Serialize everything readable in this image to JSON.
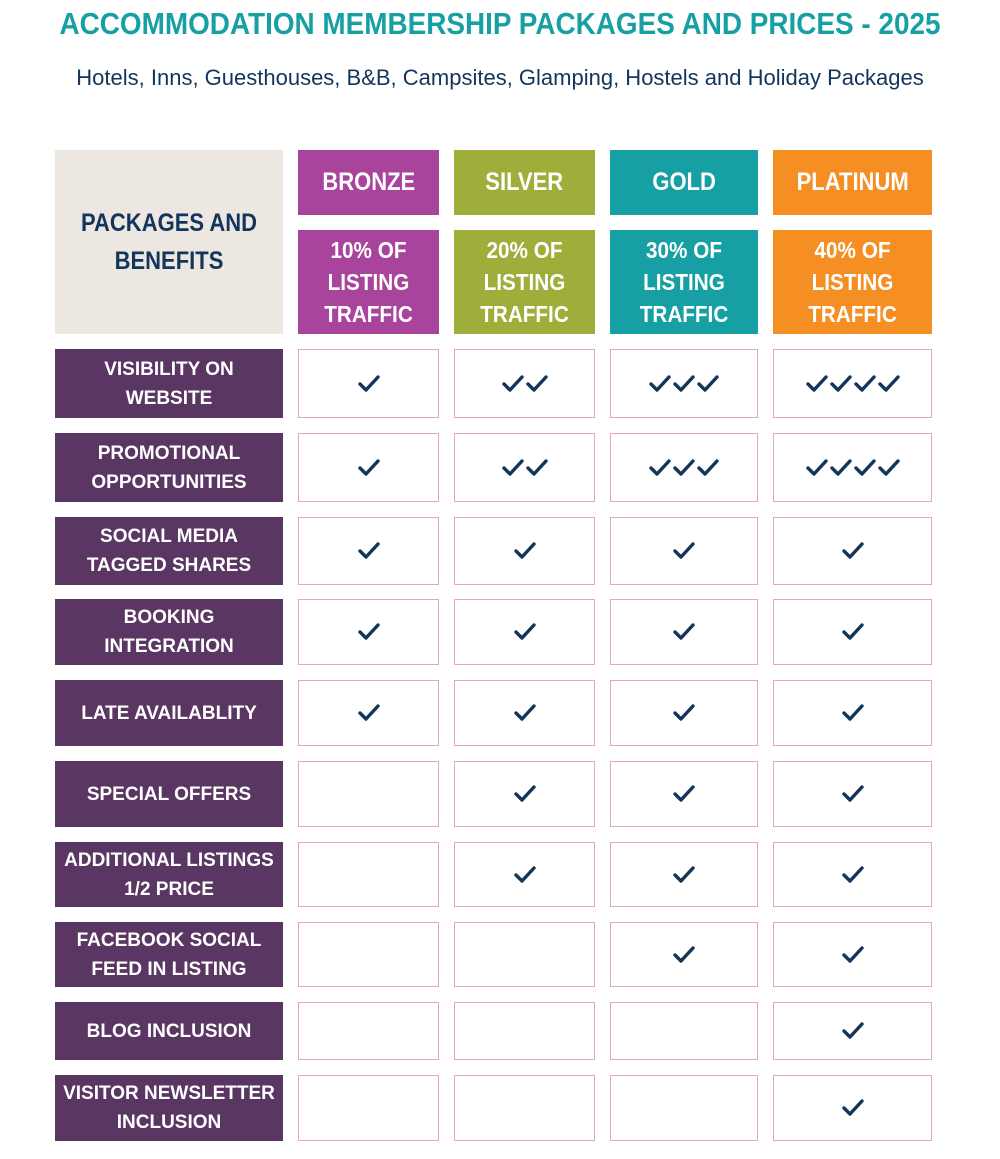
{
  "title": "ACCOMMODATION MEMBERSHIP PACKAGES AND PRICES - 2025",
  "subtitle": "Hotels, Inns, Guesthouses, B&B, Campsites, Glamping, Hostels and Holiday Packages",
  "corner_label": "PACKAGES AND BENEFITS",
  "packages": [
    {
      "name": "BRONZE",
      "traffic": "10% OF LISTING TRAFFIC",
      "color": "#a8449b"
    },
    {
      "name": "SILVER",
      "traffic": "20% OF LISTING TRAFFIC",
      "color": "#9fae3b"
    },
    {
      "name": "GOLD",
      "traffic": "30% OF LISTING TRAFFIC",
      "color": "#17a0a3"
    },
    {
      "name": "PLATINUM",
      "traffic": "40% OF LISTING TRAFFIC",
      "color": "#f58e23"
    }
  ],
  "check_icon": "checkmark-icon",
  "check_color": "#12355b",
  "benefits": [
    {
      "label": "VISIBILITY ON WEBSITE",
      "checks": [
        1,
        2,
        3,
        4
      ]
    },
    {
      "label": "PROMOTIONAL OPPORTUNITIES",
      "checks": [
        1,
        2,
        3,
        4
      ]
    },
    {
      "label": "SOCIAL MEDIA TAGGED SHARES",
      "checks": [
        1,
        1,
        1,
        1
      ]
    },
    {
      "label": "BOOKING INTEGRATION",
      "checks": [
        1,
        1,
        1,
        1
      ]
    },
    {
      "label": "LATE AVAILABLITY",
      "checks": [
        1,
        1,
        1,
        1
      ]
    },
    {
      "label": "SPECIAL OFFERS",
      "checks": [
        0,
        1,
        1,
        1
      ]
    },
    {
      "label": "ADDITIONAL LISTINGS 1/2 PRICE",
      "checks": [
        0,
        1,
        1,
        1
      ]
    },
    {
      "label": "FACEBOOK SOCIAL FEED IN LISTING",
      "checks": [
        0,
        0,
        1,
        1
      ]
    },
    {
      "label": "BLOG INCLUSION",
      "checks": [
        0,
        0,
        0,
        1
      ]
    },
    {
      "label": "VISITOR NEWSLETTER INCLUSION",
      "checks": [
        0,
        0,
        0,
        1
      ]
    }
  ]
}
